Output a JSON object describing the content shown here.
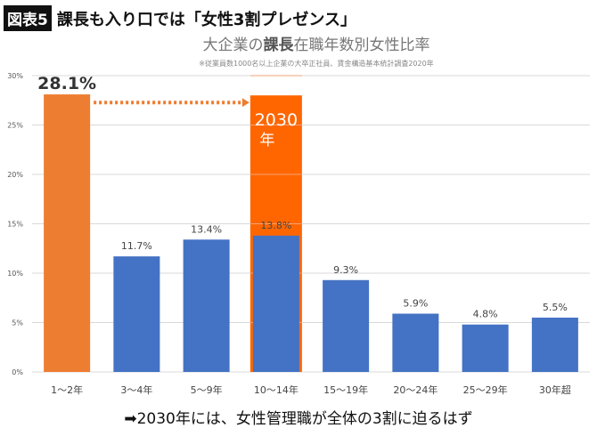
{
  "header": {
    "badge": "図表5",
    "title": "課長も入り口では「女性3割プレゼンス」"
  },
  "subtitle": {
    "pre": "大企業の",
    "bold": "課長",
    "post": "在職年数別女性比率"
  },
  "note": "※従業員数1000名以上企業の大卒正社員、賃金構造基本統計調査2020年",
  "footer": "➡2030年には、女性管理職が全体の3割に迫るはず",
  "chart_data": {
    "type": "bar",
    "categories": [
      "1〜2年",
      "3〜4年",
      "5〜9年",
      "10〜14年",
      "15〜19年",
      "20〜24年",
      "25〜29年",
      "30年超"
    ],
    "values": [
      28.1,
      11.7,
      13.4,
      13.8,
      9.3,
      5.9,
      4.8,
      5.5
    ],
    "labels": [
      "28.1%",
      "11.7%",
      "13.4%",
      "13.8%",
      "9.3%",
      "5.9%",
      "4.8%",
      "5.5%"
    ],
    "yticks": [
      "0%",
      "5%",
      "10%",
      "15%",
      "20%",
      "25%",
      "30%"
    ],
    "ylim": [
      0,
      30
    ],
    "grid": true,
    "colors": {
      "blue": "#4472C4",
      "orange_first": "#ED7D31",
      "target": "#FF6600",
      "arrow": "#ED7D31"
    },
    "annotation": {
      "category": "10〜14年",
      "value": 28,
      "label_line1": "2030",
      "label_line2": "年"
    }
  }
}
